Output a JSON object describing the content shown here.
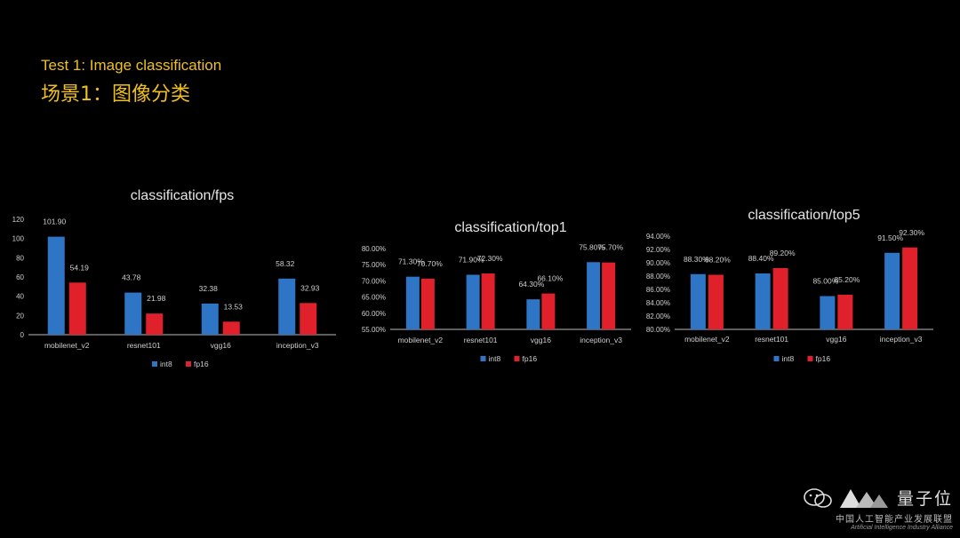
{
  "header": {
    "title_en": "Test 1: Image classification",
    "title_zh": "场景1：图像分类"
  },
  "watermark": {
    "brand": "量子位",
    "org_zh": "中国人工智能产业发展联盟",
    "org_en": "Artificial Intelligence Industry Alliance"
  },
  "colors": {
    "int8": "#2e75c6",
    "fp16": "#e0202a",
    "axis": "#bbbbbb"
  },
  "chart_data": [
    {
      "type": "bar",
      "title": "classification/fps",
      "categories": [
        "mobilenet_v2",
        "resnet101",
        "vgg16",
        "inception_v3"
      ],
      "series": [
        {
          "name": "int8",
          "values": [
            101.9,
            43.78,
            32.38,
            58.32
          ],
          "labels": [
            "101.90",
            "43.78",
            "32.38",
            "58.32"
          ]
        },
        {
          "name": "fp16",
          "values": [
            54.19,
            21.98,
            13.53,
            32.93
          ],
          "labels": [
            "54.19",
            "21.98",
            "13.53",
            "32.93"
          ]
        }
      ],
      "ylim": [
        0,
        120
      ],
      "yticks": [
        0,
        20,
        40,
        60,
        80,
        100,
        120
      ],
      "ytick_labels": [
        "0",
        "20",
        "40",
        "60",
        "80",
        "100",
        "120"
      ],
      "legend": "bottom"
    },
    {
      "type": "bar",
      "title": "classification/top1",
      "categories": [
        "mobilenet_v2",
        "resnet101",
        "vgg16",
        "inception_v3"
      ],
      "series": [
        {
          "name": "int8",
          "values": [
            71.3,
            71.9,
            64.3,
            75.8
          ],
          "labels": [
            "71.30%",
            "71.90%",
            "64.30%",
            "75.80%"
          ]
        },
        {
          "name": "fp16",
          "values": [
            70.7,
            72.3,
            66.1,
            75.7
          ],
          "labels": [
            "70.70%",
            "72.30%",
            "66.10%",
            "75.70%"
          ]
        }
      ],
      "ylim": [
        55,
        80
      ],
      "yticks": [
        55,
        60,
        65,
        70,
        75,
        80
      ],
      "ytick_labels": [
        "55.00%",
        "60.00%",
        "65.00%",
        "70.00%",
        "75.00%",
        "80.00%"
      ],
      "legend": "bottom"
    },
    {
      "type": "bar",
      "title": "classification/top5",
      "categories": [
        "mobilenet_v2",
        "resnet101",
        "vgg16",
        "inception_v3"
      ],
      "series": [
        {
          "name": "int8",
          "values": [
            88.3,
            88.4,
            85.0,
            91.5
          ],
          "labels": [
            "88.30%",
            "88.40%",
            "85.00%",
            "91.50%"
          ]
        },
        {
          "name": "fp16",
          "values": [
            88.2,
            89.2,
            85.2,
            92.3
          ],
          "labels": [
            "88.20%",
            "89.20%",
            "85.20%",
            "92.30%"
          ]
        }
      ],
      "ylim": [
        80,
        94
      ],
      "yticks": [
        80,
        82,
        84,
        86,
        88,
        90,
        92,
        94
      ],
      "ytick_labels": [
        "80.00%",
        "82.00%",
        "84.00%",
        "86.00%",
        "88.00%",
        "90.00%",
        "92.00%",
        "94.00%"
      ],
      "legend": "bottom"
    }
  ]
}
